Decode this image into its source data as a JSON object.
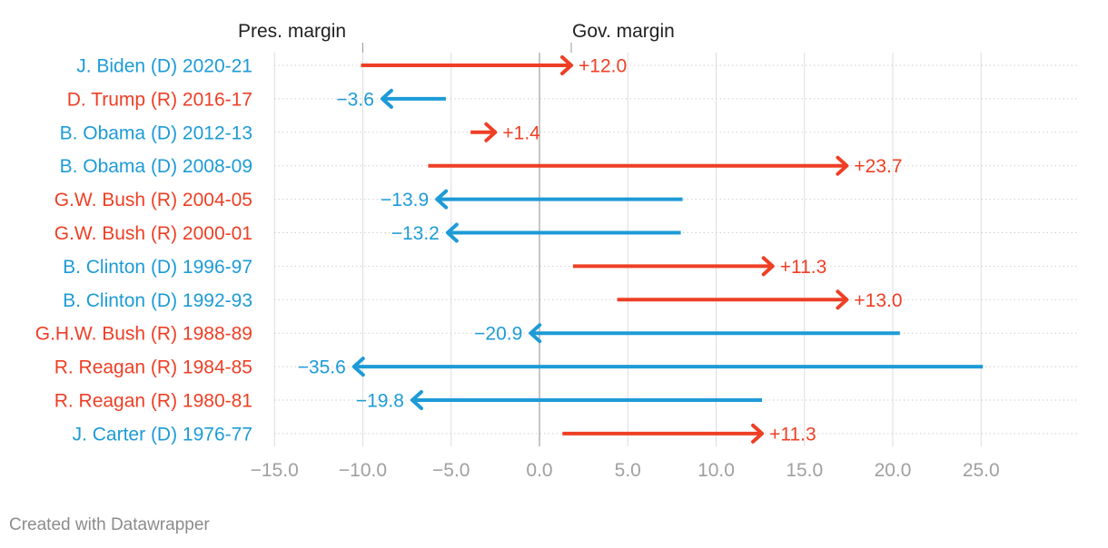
{
  "chart_data": {
    "type": "arrow",
    "title": "",
    "x_ticks": [
      "−15.0",
      "−10.0",
      "−5.0",
      "0.0",
      "5.0",
      "10.0",
      "15.0",
      "20.0",
      "25.0"
    ],
    "x_tick_values": [
      -15,
      -10,
      -5,
      0,
      5,
      10,
      15,
      20,
      25
    ],
    "xlim": [
      -15,
      30
    ],
    "grid": true,
    "annotations": [
      {
        "text": "Pres. margin",
        "x": -10
      },
      {
        "text": "Gov. margin",
        "x": 1.8
      }
    ],
    "colors": {
      "D": "#1d9bd7",
      "R": "#ee3f25",
      "grid": "#dddddd",
      "zero": "#b3b3b3"
    },
    "rows": [
      {
        "label": "J. Biden (D) 2020-21",
        "party": "D",
        "pres_margin": -10.1,
        "gov_margin": 1.8,
        "change": "+12.0"
      },
      {
        "label": "D. Trump (R) 2016-17",
        "party": "R",
        "pres_margin": -5.3,
        "gov_margin": -8.9,
        "change": "−3.6"
      },
      {
        "label": "B. Obama (D) 2012-13",
        "party": "D",
        "pres_margin": -3.9,
        "gov_margin": -2.5,
        "change": "+1.4"
      },
      {
        "label": "B. Obama (D) 2008-09",
        "party": "D",
        "pres_margin": -6.3,
        "gov_margin": 17.4,
        "change": "+23.7"
      },
      {
        "label": "G.W. Bush (R) 2004-05",
        "party": "R",
        "pres_margin": 8.1,
        "gov_margin": -5.8,
        "change": "−13.9"
      },
      {
        "label": "G.W. Bush (R) 2000-01",
        "party": "R",
        "pres_margin": 8.0,
        "gov_margin": -5.2,
        "change": "−13.2"
      },
      {
        "label": "B. Clinton (D) 1996-97",
        "party": "D",
        "pres_margin": 1.9,
        "gov_margin": 13.2,
        "change": "+11.3"
      },
      {
        "label": "B. Clinton (D) 1992-93",
        "party": "D",
        "pres_margin": 4.4,
        "gov_margin": 17.4,
        "change": "+13.0"
      },
      {
        "label": "G.H.W. Bush (R) 1988-89",
        "party": "R",
        "pres_margin": 20.4,
        "gov_margin": -0.5,
        "change": "−20.9"
      },
      {
        "label": "R. Reagan (R) 1984-85",
        "party": "R",
        "pres_margin": 25.1,
        "gov_margin": -10.5,
        "change": "−35.6"
      },
      {
        "label": "R. Reagan (R) 1980-81",
        "party": "R",
        "pres_margin": 12.6,
        "gov_margin": -7.2,
        "change": "−19.8"
      },
      {
        "label": "J. Carter (D) 1976-77",
        "party": "D",
        "pres_margin": 1.3,
        "gov_margin": 12.6,
        "change": "+11.3"
      }
    ]
  },
  "footer": {
    "text": "Created with Datawrapper"
  }
}
